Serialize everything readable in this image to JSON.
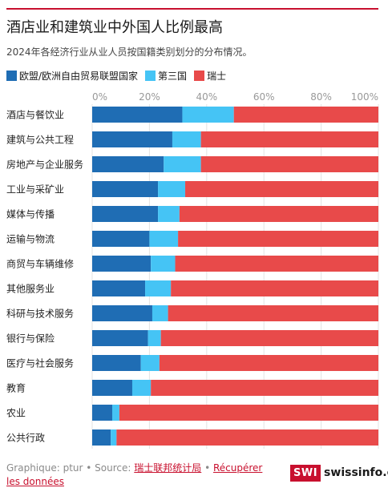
{
  "title": "酒店业和建筑业中外国人比例最高",
  "subtitle": "2024年各经济行业从业人员按国籍类别划分的分布情况。",
  "legend": [
    {
      "label": "欧盟/欧洲自由贸易联盟国家",
      "color": "#1f6db4"
    },
    {
      "label": "第三国",
      "color": "#45c4f5"
    },
    {
      "label": "瑞士",
      "color": "#e84a4a"
    }
  ],
  "chart_data": {
    "type": "bar",
    "orientation": "horizontal",
    "stacked": true,
    "x_ticks": [
      "0%",
      "20%",
      "40%",
      "60%",
      "80%",
      "100%"
    ],
    "xlim": [
      0,
      100
    ],
    "grid": true,
    "legend_position": "top-left",
    "categories": [
      "酒店与餐饮业",
      "建筑与公共工程",
      "房地产与企业服务",
      "工业与采矿业",
      "媒体与传播",
      "运输与物流",
      "商贸与车辆维修",
      "其他服务业",
      "科研与技术服务",
      "银行与保险",
      "医疗与社会服务",
      "教育",
      "农业",
      "公共行政"
    ],
    "series": [
      {
        "name": "欧盟/欧洲自由贸易联盟国家",
        "color": "#1f6db4",
        "values": [
          31.5,
          28,
          25,
          23,
          23,
          20,
          20.5,
          18.5,
          21,
          19.5,
          17,
          14,
          7,
          6.5
        ]
      },
      {
        "name": "第三国",
        "color": "#45c4f5",
        "values": [
          18,
          10,
          13,
          9.5,
          7.5,
          10,
          8.5,
          9,
          5.5,
          4.5,
          6.5,
          6.5,
          2.5,
          2
        ]
      },
      {
        "name": "瑞士",
        "color": "#e84a4a",
        "values": [
          50.5,
          62,
          62,
          67.5,
          69.5,
          70,
          71,
          72.5,
          73.5,
          76,
          76.5,
          79.5,
          90.5,
          91.5
        ]
      }
    ]
  },
  "footer": {
    "prefix": "Graphique: ptur • Source: ",
    "source_link": "瑞士联邦统计局",
    "separator": " • ",
    "data_link": "Récupérer les données"
  },
  "logo": {
    "box": "SWI",
    "text": "swissinfo.ch"
  }
}
